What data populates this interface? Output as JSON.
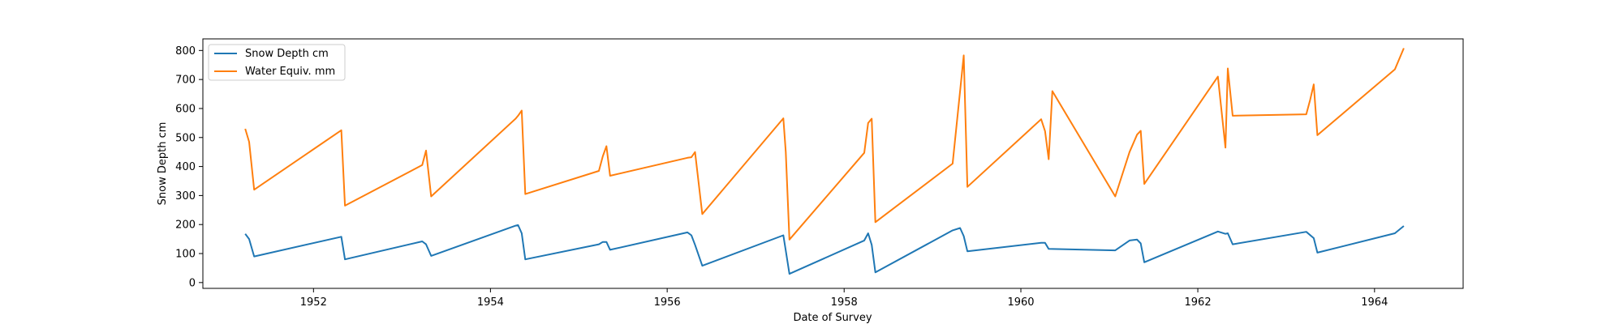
{
  "chart_data": {
    "type": "line",
    "xlabel": "Date of Survey",
    "ylabel": "Snow Depth cm",
    "xlim": [
      "1950-10-01",
      "1965-01-01"
    ],
    "ylim": [
      -20,
      840
    ],
    "x_ticks": [
      "1952",
      "1954",
      "1956",
      "1958",
      "1960",
      "1962",
      "1964"
    ],
    "y_ticks": [
      0,
      100,
      200,
      300,
      400,
      500,
      600,
      700,
      800
    ],
    "grid": false,
    "legend_position": "top-left",
    "series": [
      {
        "name": "Snow Depth cm",
        "color": "#1f77b4",
        "points": [
          [
            "1951-03-25",
            168
          ],
          [
            "1951-04-10",
            150
          ],
          [
            "1951-05-01",
            90
          ],
          [
            "1952-04-25",
            158
          ],
          [
            "1952-05-10",
            80
          ],
          [
            "1953-03-25",
            142
          ],
          [
            "1953-04-10",
            132
          ],
          [
            "1953-05-01",
            92
          ],
          [
            "1954-04-15",
            196
          ],
          [
            "1954-04-25",
            198
          ],
          [
            "1954-05-10",
            170
          ],
          [
            "1954-05-25",
            80
          ],
          [
            "1955-03-25",
            132
          ],
          [
            "1955-04-10",
            140
          ],
          [
            "1955-04-25",
            140
          ],
          [
            "1955-05-10",
            113
          ],
          [
            "1956-03-25",
            173
          ],
          [
            "1956-04-10",
            163
          ],
          [
            "1956-04-25",
            130
          ],
          [
            "1956-05-25",
            58
          ],
          [
            "1957-04-25",
            163
          ],
          [
            "1957-05-05",
            110
          ],
          [
            "1957-05-20",
            30
          ],
          [
            "1958-03-25",
            145
          ],
          [
            "1958-04-10",
            170
          ],
          [
            "1958-04-25",
            130
          ],
          [
            "1958-05-10",
            35
          ],
          [
            "1959-03-25",
            180
          ],
          [
            "1959-04-25",
            188
          ],
          [
            "1959-05-10",
            160
          ],
          [
            "1959-05-25",
            108
          ],
          [
            "1960-03-25",
            137
          ],
          [
            "1960-04-10",
            137
          ],
          [
            "1960-04-25",
            116
          ],
          [
            "1961-01-25",
            111
          ],
          [
            "1961-03-25",
            145
          ],
          [
            "1961-04-25",
            148
          ],
          [
            "1961-05-10",
            135
          ],
          [
            "1961-05-25",
            70
          ],
          [
            "1962-03-25",
            176
          ],
          [
            "1962-04-25",
            168
          ],
          [
            "1962-05-05",
            170
          ],
          [
            "1962-05-25",
            132
          ],
          [
            "1963-03-25",
            175
          ],
          [
            "1963-04-25",
            153
          ],
          [
            "1963-05-10",
            103
          ],
          [
            "1964-03-25",
            170
          ],
          [
            "1964-05-01",
            195
          ]
        ]
      },
      {
        "name": "Water Equiv. mm",
        "color": "#ff7f0e",
        "points": [
          [
            "1951-03-25",
            530
          ],
          [
            "1951-04-10",
            485
          ],
          [
            "1951-05-01",
            320
          ],
          [
            "1952-04-25",
            525
          ],
          [
            "1952-05-10",
            265
          ],
          [
            "1953-03-25",
            405
          ],
          [
            "1953-04-10",
            455
          ],
          [
            "1953-05-01",
            297
          ],
          [
            "1954-04-15",
            565
          ],
          [
            "1954-04-25",
            575
          ],
          [
            "1954-05-10",
            593
          ],
          [
            "1954-05-25",
            305
          ],
          [
            "1955-03-25",
            385
          ],
          [
            "1955-04-10",
            435
          ],
          [
            "1955-04-25",
            470
          ],
          [
            "1955-05-10",
            368
          ],
          [
            "1956-03-25",
            430
          ],
          [
            "1956-04-10",
            432
          ],
          [
            "1956-04-25",
            450
          ],
          [
            "1956-05-25",
            236
          ],
          [
            "1957-04-25",
            566
          ],
          [
            "1957-05-05",
            450
          ],
          [
            "1957-05-20",
            148
          ],
          [
            "1958-03-25",
            447
          ],
          [
            "1958-04-10",
            550
          ],
          [
            "1958-04-25",
            565
          ],
          [
            "1958-05-10",
            208
          ],
          [
            "1959-03-25",
            410
          ],
          [
            "1959-04-25",
            660
          ],
          [
            "1959-05-10",
            783
          ],
          [
            "1959-05-25",
            330
          ],
          [
            "1960-03-25",
            563
          ],
          [
            "1960-04-10",
            522
          ],
          [
            "1960-04-25",
            425
          ],
          [
            "1960-05-10",
            660
          ],
          [
            "1961-01-25",
            297
          ],
          [
            "1961-03-25",
            450
          ],
          [
            "1961-04-25",
            510
          ],
          [
            "1961-05-10",
            523
          ],
          [
            "1961-05-25",
            340
          ],
          [
            "1962-03-25",
            710
          ],
          [
            "1962-04-25",
            465
          ],
          [
            "1962-05-05",
            738
          ],
          [
            "1962-05-25",
            575
          ],
          [
            "1963-03-25",
            580
          ],
          [
            "1963-04-10",
            630
          ],
          [
            "1963-04-25",
            683
          ],
          [
            "1963-05-10",
            508
          ],
          [
            "1964-03-25",
            735
          ],
          [
            "1964-05-01",
            808
          ]
        ]
      }
    ]
  }
}
